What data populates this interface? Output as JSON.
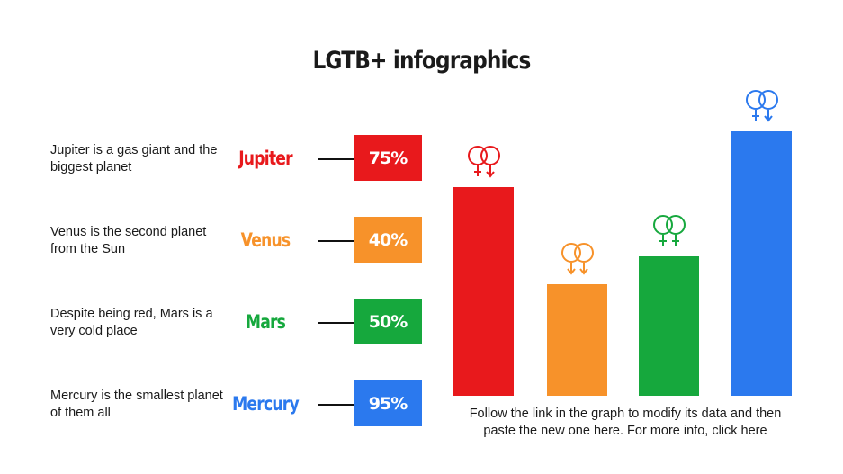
{
  "title": "LGTB+ infographics",
  "items": [
    {
      "desc": "Jupiter is a gas giant and the biggest planet",
      "name": "Jupiter",
      "value_label": "75%",
      "color": "#e8191c",
      "icon": "female-male-couple-icon"
    },
    {
      "desc": "Venus is the second planet from the Sun",
      "name": "Venus",
      "value_label": "40%",
      "color": "#f7922a",
      "icon": "male-male-couple-icon"
    },
    {
      "desc": "Despite being red, Mars is a very cold place",
      "name": "Mars",
      "value_label": "50%",
      "color": "#16a83d",
      "icon": "female-female-couple-icon"
    },
    {
      "desc": "Mercury is the smallest planet of them all",
      "name": "Mercury",
      "value_label": "95%",
      "color": "#2b79ee",
      "icon": "female-male-couple-icon"
    }
  ],
  "footer": "Follow the link in the graph to modify its data and then paste the new one here. For more info, click here",
  "chart_data": {
    "type": "bar",
    "title": "LGTB+ infographics",
    "categories": [
      "Jupiter",
      "Venus",
      "Mars",
      "Mercury"
    ],
    "values": [
      75,
      40,
      50,
      95
    ],
    "colors": [
      "#e8191c",
      "#f7922a",
      "#16a83d",
      "#2b79ee"
    ],
    "xlabel": "",
    "ylabel": "",
    "ylim": [
      0,
      100
    ],
    "grid": false,
    "legend": "none"
  }
}
